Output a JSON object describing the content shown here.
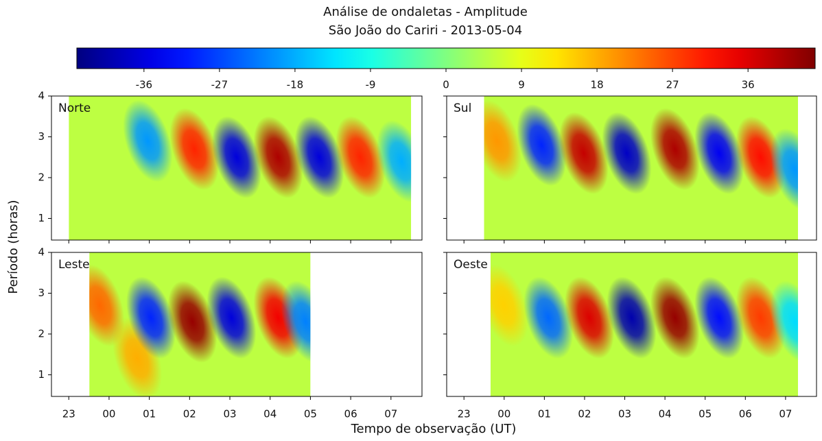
{
  "chart_data": {
    "type": "heatmap",
    "title": "Análise de ondaletas - Amplitude",
    "subtitle": "São João do Cariri - 2013-05-04",
    "xlabel": "Tempo de observação (UT)",
    "ylabel": "Período (horas)",
    "colormap": "jet",
    "clim": [
      -44,
      44
    ],
    "cticks": [
      -36,
      -27,
      -18,
      -9,
      0,
      9,
      18,
      27,
      36
    ],
    "xlim": [
      -1.43,
      7.77
    ],
    "xticks": [
      {
        "value": -1,
        "label": "23"
      },
      {
        "value": 0,
        "label": "00"
      },
      {
        "value": 1,
        "label": "01"
      },
      {
        "value": 2,
        "label": "02"
      },
      {
        "value": 3,
        "label": "03"
      },
      {
        "value": 4,
        "label": "04"
      },
      {
        "value": 5,
        "label": "05"
      },
      {
        "value": 6,
        "label": "06"
      },
      {
        "value": 7,
        "label": "07"
      }
    ],
    "ylim": [
      0.47,
      4
    ],
    "yticks": [
      1,
      2,
      3,
      4
    ],
    "panels": [
      {
        "name": "Norte",
        "data_xlim": [
          -1.0,
          7.5
        ],
        "x": [
          0.96,
          2.12,
          3.17,
          4.2,
          5.22,
          6.24,
          7.26
        ],
        "y": [
          2.9,
          2.7,
          2.5,
          2.5,
          2.5,
          2.5,
          2.4
        ],
        "values": [
          -20,
          30,
          -36,
          40,
          -36,
          30,
          -18
        ]
      },
      {
        "name": "Sul",
        "data_xlim": [
          -0.5,
          7.31
        ],
        "x": [
          -0.18,
          0.93,
          1.98,
          3.05,
          4.25,
          5.35,
          6.38,
          7.23
        ],
        "y": [
          2.9,
          2.8,
          2.6,
          2.6,
          2.7,
          2.6,
          2.5,
          2.2
        ],
        "values": [
          20,
          -30,
          38,
          -38,
          40,
          -34,
          32,
          -20
        ]
      },
      {
        "name": "Leste",
        "data_xlim": [
          -0.49,
          5.0
        ],
        "x": [
          -0.23,
          0.7,
          1.04,
          2.07,
          3.04,
          4.2,
          4.88
        ],
        "y": [
          2.7,
          1.4,
          2.4,
          2.3,
          2.4,
          2.4,
          2.3
        ],
        "values": [
          24,
          18,
          -30,
          42,
          -36,
          34,
          -22
        ]
      },
      {
        "name": "Oeste",
        "data_xlim": [
          -0.34,
          7.31
        ],
        "x": [
          -0.01,
          1.1,
          2.12,
          3.17,
          4.25,
          5.35,
          6.38,
          7.23
        ],
        "y": [
          2.7,
          2.4,
          2.4,
          2.4,
          2.4,
          2.4,
          2.4,
          2.3
        ],
        "values": [
          15,
          -24,
          36,
          -40,
          42,
          -32,
          28,
          -14
        ]
      }
    ]
  }
}
